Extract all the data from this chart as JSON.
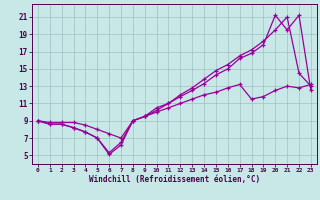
{
  "xlabel": "Windchill (Refroidissement éolien,°C)",
  "bg_color": "#c8e8e8",
  "line_color": "#990099",
  "grid_color": "#a0c0c0",
  "xlim": [
    -0.5,
    23.5
  ],
  "ylim": [
    4,
    22.5
  ],
  "xticks": [
    0,
    1,
    2,
    3,
    4,
    5,
    6,
    7,
    8,
    9,
    10,
    11,
    12,
    13,
    14,
    15,
    16,
    17,
    18,
    19,
    20,
    21,
    22,
    23
  ],
  "yticks": [
    5,
    7,
    9,
    11,
    13,
    15,
    17,
    19,
    21
  ],
  "line1_x": [
    0,
    1,
    2,
    3,
    4,
    5,
    6,
    7,
    8,
    9,
    10,
    11,
    12,
    13,
    14,
    15,
    16,
    17,
    18,
    19,
    20,
    21,
    22,
    23
  ],
  "line1_y": [
    9,
    8.6,
    8.6,
    8.2,
    7.7,
    7.0,
    5.1,
    6.2,
    9.0,
    9.5,
    10.5,
    11.0,
    12.0,
    12.8,
    13.8,
    14.8,
    15.5,
    16.5,
    17.2,
    18.2,
    19.5,
    21.0,
    14.5,
    13.0
  ],
  "line2_x": [
    0,
    1,
    2,
    3,
    4,
    5,
    6,
    7,
    8,
    9,
    10,
    11,
    12,
    13,
    14,
    15,
    16,
    17,
    18,
    19,
    20,
    21,
    22,
    23
  ],
  "line2_y": [
    9,
    8.6,
    8.6,
    8.2,
    7.7,
    7.0,
    5.3,
    6.5,
    9.0,
    9.5,
    10.2,
    11.0,
    11.8,
    12.5,
    13.3,
    14.3,
    15.0,
    16.2,
    16.8,
    17.8,
    21.2,
    19.5,
    21.2,
    12.5
  ],
  "line3_x": [
    0,
    1,
    2,
    3,
    4,
    5,
    6,
    7,
    8,
    9,
    10,
    11,
    12,
    13,
    14,
    15,
    16,
    17,
    18,
    19,
    20,
    21,
    22,
    23
  ],
  "line3_y": [
    9,
    8.8,
    8.8,
    8.8,
    8.5,
    8.0,
    7.5,
    7.0,
    9.0,
    9.5,
    10.0,
    10.5,
    11.0,
    11.5,
    12.0,
    12.3,
    12.8,
    13.2,
    11.5,
    11.8,
    12.5,
    13.0,
    12.8,
    13.2
  ]
}
